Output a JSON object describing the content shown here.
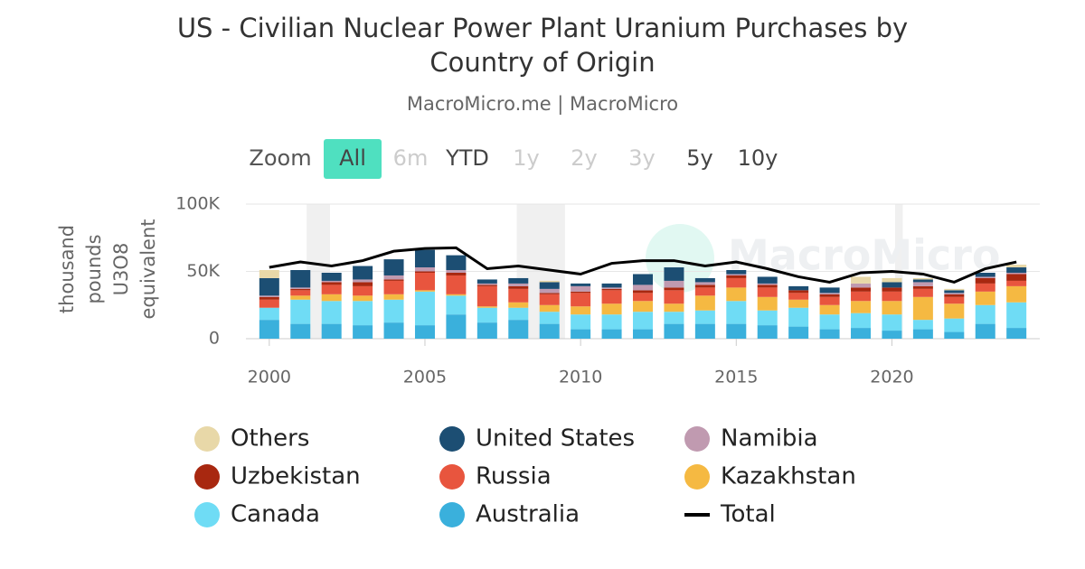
{
  "chart_data": {
    "type": "stacked-bar-line",
    "title": [
      "US - Civilian Nuclear Power Plant Uranium Purchases by",
      "Country of Origin"
    ],
    "subtitle": "MacroMicro.me | MacroMicro",
    "watermark": "MacroMicro",
    "zoom": {
      "label": "Zoom",
      "buttons": [
        "All",
        "6m",
        "YTD",
        "1y",
        "2y",
        "3y",
        "5y",
        "10y"
      ],
      "active": "All",
      "disabled": [
        "6m",
        "1y",
        "2y",
        "3y"
      ]
    },
    "ylabel": [
      "thousand",
      "pounds",
      "U3O8",
      "equivalent"
    ],
    "x": [
      2000,
      2001,
      2002,
      2003,
      2004,
      2005,
      2006,
      2007,
      2008,
      2009,
      2010,
      2011,
      2012,
      2013,
      2014,
      2015,
      2016,
      2017,
      2018,
      2019,
      2020,
      2021,
      2022,
      2023,
      2024
    ],
    "xlim": [
      1999.25,
      2024.75
    ],
    "xticks": [
      2000,
      2005,
      2010,
      2015,
      2020
    ],
    "ylim": [
      0,
      100000
    ],
    "yticks": [
      0,
      {
        "value": 50000,
        "label": "50K"
      },
      {
        "value": 100000,
        "label": "100K"
      }
    ],
    "grid": true,
    "shaded_periods": [
      {
        "start": 2001.2,
        "end": 2001.95
      },
      {
        "start": 2007.95,
        "end": 2009.5
      },
      {
        "start": 2020.1,
        "end": 2020.35
      }
    ],
    "series": [
      {
        "name": "Others",
        "color": "#e8d8a8",
        "kind": "bar",
        "values": [
          6000,
          0,
          0,
          0,
          0,
          0,
          0,
          0,
          0,
          1000,
          0,
          0,
          0,
          0,
          0,
          0,
          0,
          0,
          0,
          5000,
          3000,
          1000,
          1000,
          0,
          2000
        ]
      },
      {
        "name": "United States",
        "color": "#1c4e73",
        "kind": "bar",
        "values": [
          13000,
          13000,
          6000,
          10000,
          12000,
          13000,
          11000,
          3000,
          4000,
          5000,
          2000,
          3000,
          8000,
          10000,
          3000,
          3000,
          5000,
          3000,
          4000,
          0,
          4000,
          2000,
          2000,
          3000,
          4000
        ]
      },
      {
        "name": "Namibia",
        "color": "#c09ab0",
        "kind": "bar",
        "values": [
          1000,
          1000,
          1000,
          2000,
          3000,
          3000,
          2000,
          1000,
          2000,
          3000,
          4000,
          1000,
          4000,
          5000,
          2000,
          1000,
          1000,
          0,
          1000,
          3000,
          0,
          3000,
          1000,
          1000,
          1000
        ]
      },
      {
        "name": "Uzbekistan",
        "color": "#a82810",
        "kind": "bar",
        "values": [
          2000,
          1000,
          2000,
          3000,
          1000,
          1000,
          2000,
          1000,
          2000,
          1000,
          1000,
          1000,
          2000,
          2000,
          2000,
          2000,
          2000,
          2000,
          2000,
          3000,
          3000,
          2000,
          2000,
          4000,
          5000
        ]
      },
      {
        "name": "Russia",
        "color": "#e8553e",
        "kind": "bar",
        "values": [
          6000,
          4000,
          7000,
          7000,
          10000,
          13000,
          14000,
          15000,
          10000,
          8000,
          10000,
          10000,
          6000,
          10000,
          6000,
          7000,
          7000,
          5000,
          6000,
          7000,
          7000,
          6000,
          5000,
          6000,
          4000
        ]
      },
      {
        "name": "Kazakhstan",
        "color": "#f5b942",
        "kind": "bar",
        "values": [
          0,
          3000,
          5000,
          4000,
          4000,
          1000,
          1000,
          1000,
          4000,
          5000,
          6000,
          8000,
          8000,
          6000,
          11000,
          10000,
          10000,
          6000,
          7000,
          9000,
          10000,
          17000,
          11000,
          10000,
          12000
        ]
      },
      {
        "name": "Canada",
        "color": "#6fdcf5",
        "kind": "bar",
        "values": [
          9000,
          18000,
          17000,
          18000,
          17000,
          25000,
          14000,
          11000,
          9000,
          9000,
          11000,
          11000,
          13000,
          9000,
          10000,
          17000,
          11000,
          14000,
          11000,
          11000,
          12000,
          7000,
          10000,
          14000,
          19000
        ]
      },
      {
        "name": "Australia",
        "color": "#3ab0dc",
        "kind": "bar",
        "values": [
          14000,
          11000,
          11000,
          10000,
          12000,
          10000,
          18000,
          12000,
          14000,
          11000,
          7000,
          7000,
          7000,
          11000,
          11000,
          11000,
          10000,
          9000,
          7000,
          8000,
          6000,
          7000,
          5000,
          11000,
          8000
        ]
      },
      {
        "name": "Total",
        "color": "#000000",
        "kind": "line",
        "values": [
          53000,
          57000,
          54000,
          58000,
          65000,
          67000,
          67500,
          52000,
          54000,
          51000,
          48000,
          56000,
          58000,
          58000,
          54000,
          57000,
          52000,
          46000,
          42000,
          49000,
          50000,
          48000,
          42000,
          52000,
          57000
        ]
      }
    ]
  }
}
